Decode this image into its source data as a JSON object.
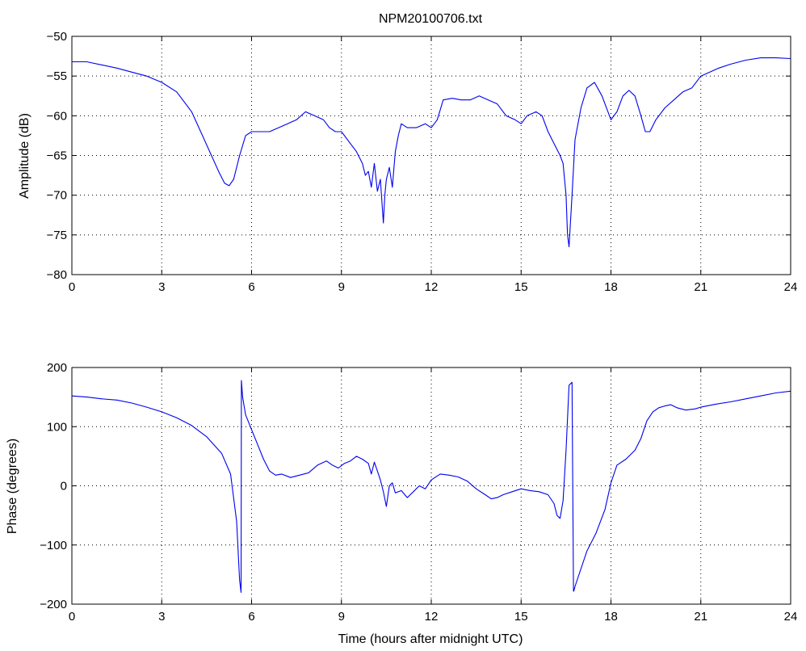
{
  "figure": {
    "title": "NPM20100706.txt",
    "colors": {
      "line": "#0000ee",
      "axes": "#000000",
      "background": "#ffffff"
    }
  },
  "chart_data": [
    {
      "type": "line",
      "title": "NPM20100706.txt",
      "xlabel": "",
      "ylabel": "Amplitude (dB)",
      "xlim": [
        0,
        24
      ],
      "ylim": [
        -80,
        -50
      ],
      "xticks": [
        0,
        3,
        6,
        9,
        12,
        15,
        18,
        21,
        24
      ],
      "yticks": [
        -80,
        -75,
        -70,
        -65,
        -60,
        -55,
        -50
      ],
      "grid": true,
      "series": [
        {
          "color": "#0000ee",
          "x": [
            0,
            0.5,
            1,
            1.5,
            2,
            2.5,
            3,
            3.5,
            4,
            4.3,
            4.6,
            4.9,
            5.1,
            5.25,
            5.4,
            5.6,
            5.8,
            6.0,
            6.3,
            6.6,
            6.9,
            7.2,
            7.5,
            7.8,
            8.1,
            8.4,
            8.6,
            8.8,
            9.0,
            9.3,
            9.5,
            9.7,
            9.8,
            9.9,
            10.0,
            10.1,
            10.2,
            10.3,
            10.4,
            10.45,
            10.5,
            10.6,
            10.7,
            10.8,
            10.9,
            11.0,
            11.2,
            11.5,
            11.8,
            12.0,
            12.2,
            12.4,
            12.7,
            13.0,
            13.3,
            13.6,
            13.9,
            14.2,
            14.5,
            14.8,
            15.0,
            15.2,
            15.5,
            15.7,
            15.9,
            16.1,
            16.3,
            16.4,
            16.5,
            16.55,
            16.6,
            16.7,
            16.8,
            17.0,
            17.2,
            17.45,
            17.7,
            18.0,
            18.2,
            18.4,
            18.6,
            18.8,
            19.0,
            19.15,
            19.3,
            19.5,
            19.8,
            20.1,
            20.4,
            20.7,
            21.0,
            21.3,
            21.6,
            22.0,
            22.5,
            23.0,
            23.5,
            24.0
          ],
          "y": [
            -53.2,
            -53.2,
            -53.6,
            -54.0,
            -54.5,
            -55.0,
            -55.8,
            -57.0,
            -59.5,
            -62.0,
            -64.5,
            -67.0,
            -68.5,
            -68.8,
            -68.0,
            -65.0,
            -62.5,
            -62.0,
            -62.0,
            -62.0,
            -61.5,
            -61.0,
            -60.5,
            -59.5,
            -60.0,
            -60.5,
            -61.5,
            -62.0,
            -62.0,
            -63.5,
            -64.5,
            -66.0,
            -67.5,
            -67.0,
            -69.0,
            -66.0,
            -69.5,
            -68.0,
            -73.5,
            -70.0,
            -68.0,
            -66.5,
            -69.0,
            -64.5,
            -62.5,
            -61.0,
            -61.5,
            -61.5,
            -61.0,
            -61.5,
            -60.5,
            -58.0,
            -57.8,
            -58.0,
            -58.0,
            -57.5,
            -58.0,
            -58.5,
            -60.0,
            -60.5,
            -61.0,
            -60.0,
            -59.5,
            -60.0,
            -62.0,
            -63.5,
            -65.0,
            -66.0,
            -70.0,
            -75.0,
            -76.5,
            -70.0,
            -63.0,
            -59.0,
            -56.5,
            -55.8,
            -57.5,
            -60.5,
            -59.5,
            -57.5,
            -56.8,
            -57.5,
            -60.0,
            -62.0,
            -62.0,
            -60.5,
            -59.0,
            -58.0,
            -57.0,
            -56.5,
            -55.0,
            -54.5,
            -54.0,
            -53.5,
            -53.0,
            -52.7,
            -52.7,
            -52.8
          ]
        }
      ]
    },
    {
      "type": "line",
      "title": "",
      "xlabel": "Time (hours after midnight UTC)",
      "ylabel": "Phase (degrees)",
      "xlim": [
        0,
        24
      ],
      "ylim": [
        -200,
        200
      ],
      "xticks": [
        0,
        3,
        6,
        9,
        12,
        15,
        18,
        21,
        24
      ],
      "yticks": [
        -200,
        -100,
        0,
        100,
        200
      ],
      "grid": true,
      "series": [
        {
          "color": "#0000ee",
          "x": [
            0,
            0.5,
            1,
            1.5,
            2,
            2.5,
            3,
            3.5,
            4,
            4.5,
            5,
            5.3,
            5.5,
            5.6,
            5.65,
            5.66,
            5.7,
            5.8,
            6.0,
            6.2,
            6.4,
            6.6,
            6.8,
            7.0,
            7.3,
            7.6,
            7.9,
            8.2,
            8.5,
            8.7,
            8.9,
            9.1,
            9.3,
            9.5,
            9.7,
            9.9,
            10.0,
            10.1,
            10.2,
            10.3,
            10.4,
            10.5,
            10.6,
            10.7,
            10.8,
            11.0,
            11.2,
            11.4,
            11.6,
            11.8,
            12.0,
            12.3,
            12.6,
            12.9,
            13.2,
            13.5,
            13.8,
            14.0,
            14.2,
            14.4,
            14.7,
            15.0,
            15.3,
            15.6,
            15.9,
            16.1,
            16.2,
            16.3,
            16.4,
            16.5,
            16.6,
            16.7,
            16.75,
            16.76,
            16.8,
            17.0,
            17.2,
            17.5,
            17.8,
            18.0,
            18.2,
            18.5,
            18.8,
            19.0,
            19.2,
            19.4,
            19.6,
            19.8,
            20.0,
            20.2,
            20.5,
            20.8,
            21.0,
            21.5,
            22.0,
            22.5,
            23.0,
            23.5,
            24.0
          ],
          "y": [
            152,
            150,
            147,
            145,
            140,
            133,
            125,
            115,
            102,
            83,
            55,
            20,
            -60,
            -160,
            -180,
            178,
            150,
            120,
            95,
            70,
            45,
            25,
            18,
            20,
            14,
            18,
            22,
            35,
            42,
            35,
            30,
            38,
            42,
            50,
            45,
            38,
            20,
            40,
            25,
            10,
            -10,
            -35,
            0,
            5,
            -12,
            -8,
            -20,
            -10,
            0,
            -5,
            10,
            20,
            18,
            15,
            8,
            -5,
            -15,
            -22,
            -20,
            -15,
            -10,
            -5,
            -8,
            -10,
            -15,
            -30,
            -50,
            -55,
            -25,
            60,
            170,
            175,
            -178,
            -178,
            -170,
            -140,
            -110,
            -80,
            -40,
            5,
            35,
            45,
            60,
            80,
            110,
            125,
            132,
            135,
            137,
            132,
            128,
            130,
            133,
            138,
            142,
            147,
            152,
            157,
            160
          ]
        }
      ]
    }
  ]
}
